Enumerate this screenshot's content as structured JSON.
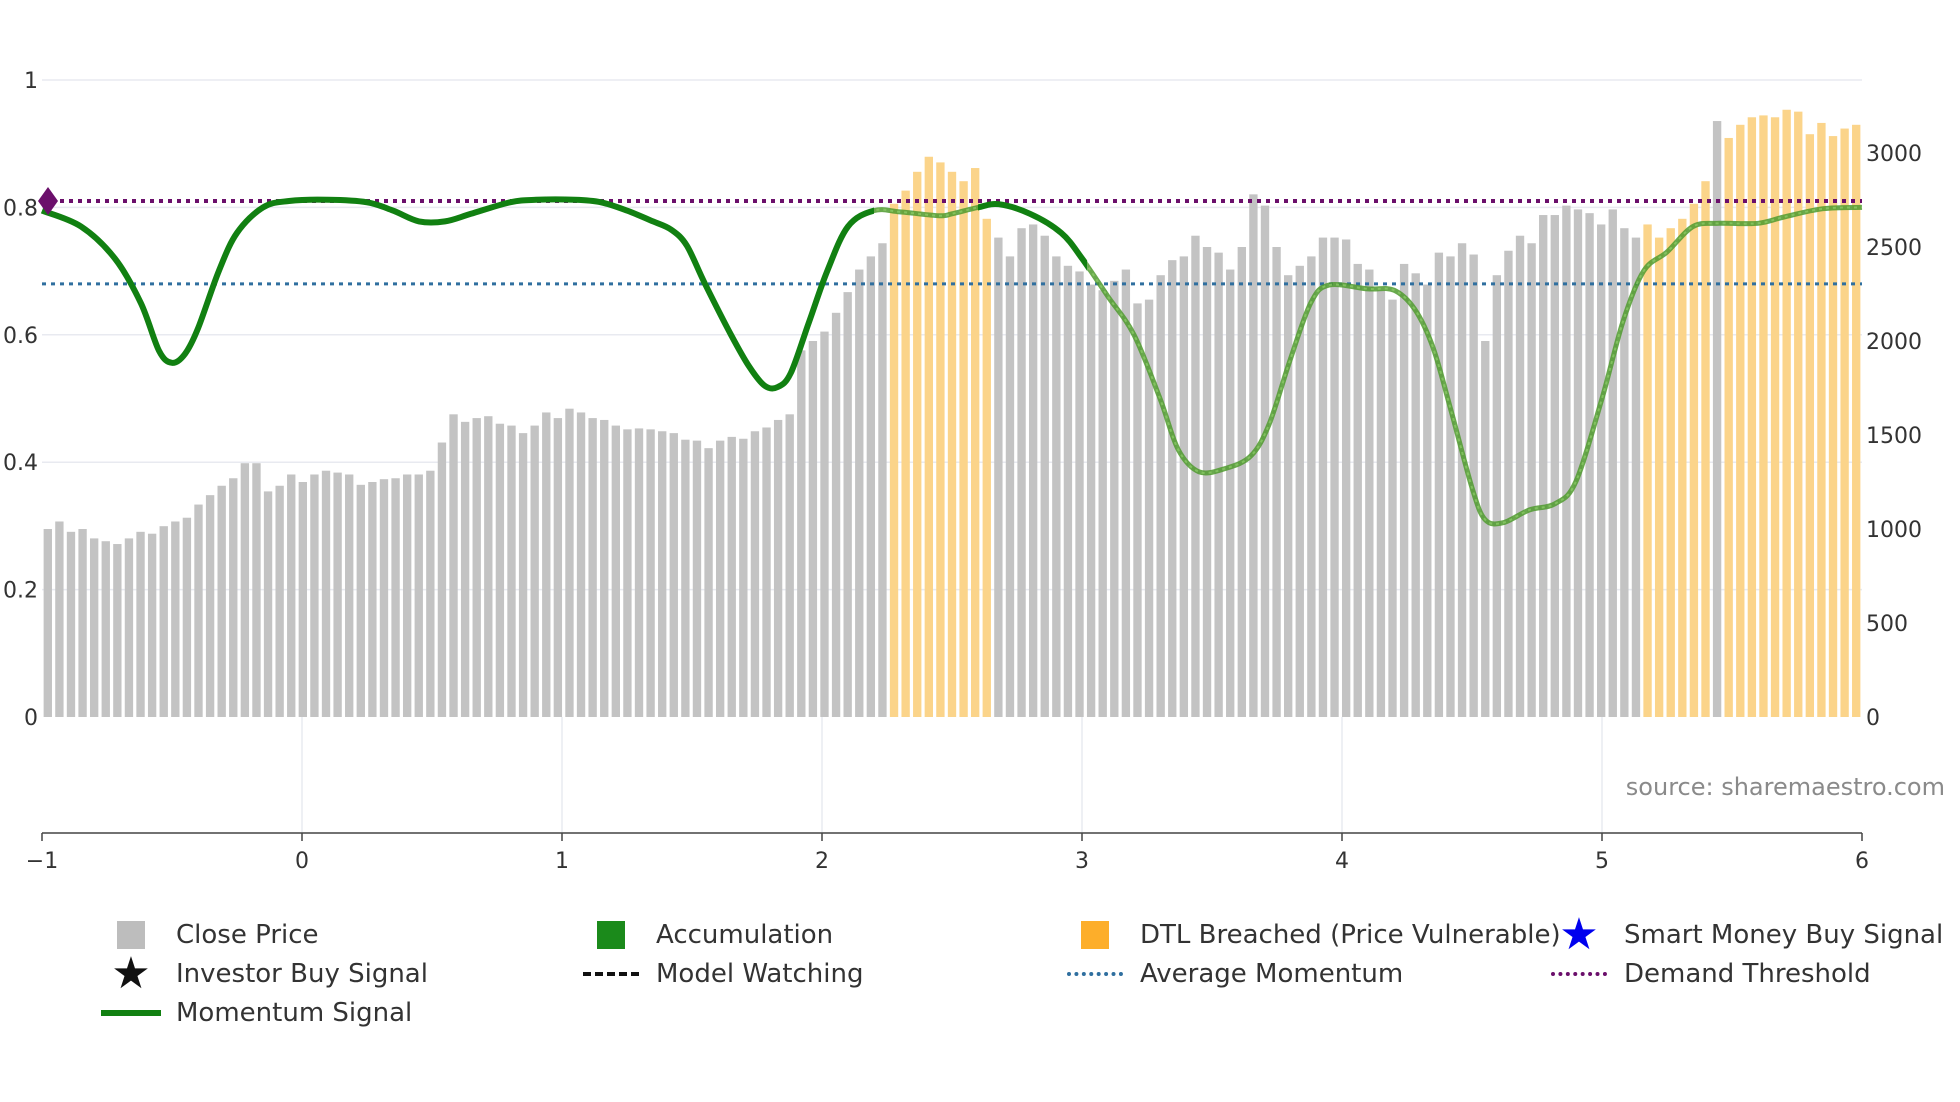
{
  "chart_data": {
    "type": "bar",
    "source_label": "source: sharemaestro.com",
    "x_axis": {
      "range": [
        -1,
        6
      ],
      "ticks": [
        "−1",
        "0",
        "1",
        "2",
        "3",
        "4",
        "5",
        "6"
      ]
    },
    "y_left": {
      "range": [
        0,
        1
      ],
      "ticks": [
        {
          "value": 0,
          "label": "0"
        },
        {
          "value": 0.2,
          "label": "0.2"
        },
        {
          "value": 0.4,
          "label": "0.4"
        },
        {
          "value": 0.6,
          "label": "0.6"
        },
        {
          "value": 0.8,
          "label": "0.8"
        },
        {
          "value": 1,
          "label": "1"
        }
      ]
    },
    "y_right": {
      "range": [
        0,
        3380
      ],
      "ticks": [
        {
          "value": 0,
          "label": "0"
        },
        {
          "value": 500,
          "label": "500"
        },
        {
          "value": 1000,
          "label": "1000"
        },
        {
          "value": 1500,
          "label": "1500"
        },
        {
          "value": 2000,
          "label": "2000"
        },
        {
          "value": 2500,
          "label": "2500"
        },
        {
          "value": 3000,
          "label": "3000"
        }
      ]
    },
    "close_price": [
      1000,
      1040,
      985,
      1000,
      950,
      935,
      920,
      950,
      985,
      975,
      1015,
      1040,
      1060,
      1130,
      1180,
      1230,
      1270,
      1350,
      1350,
      1200,
      1230,
      1290,
      1250,
      1290,
      1310,
      1300,
      1290,
      1235,
      1250,
      1265,
      1270,
      1290,
      1290,
      1310,
      1460,
      1610,
      1570,
      1590,
      1600,
      1560,
      1550,
      1510,
      1550,
      1620,
      1590,
      1640,
      1620,
      1590,
      1580,
      1550,
      1530,
      1535,
      1530,
      1520,
      1510,
      1475,
      1470,
      1430,
      1470,
      1490,
      1480,
      1520,
      1540,
      1580,
      1610,
      1950,
      2000,
      2050,
      2150,
      2260,
      2380,
      2450,
      2520,
      2730,
      2800,
      2900,
      2980,
      2950,
      2900,
      2850,
      2920,
      2650,
      2550,
      2450,
      2600,
      2620,
      2560,
      2450,
      2400,
      2370,
      2300,
      2270,
      2320,
      2380,
      2200,
      2220,
      2350,
      2430,
      2450,
      2560,
      2500,
      2470,
      2380,
      2500,
      2780,
      2720,
      2500,
      2350,
      2400,
      2450,
      2550,
      2550,
      2540,
      2410,
      2380,
      2270,
      2220,
      2410,
      2360,
      2300,
      2470,
      2450,
      2520,
      2460,
      2000,
      2350,
      2480,
      2560,
      2520,
      2670,
      2670,
      2720,
      2700,
      2680,
      2620,
      2700,
      2600,
      2550,
      2620,
      2550,
      2600,
      2650,
      2730,
      2850,
      3170,
      3080,
      3150,
      3190,
      3200,
      3190,
      3230,
      3220,
      3100,
      3160,
      3090,
      3130,
      3150
    ],
    "dtl_breached_segments": [
      [
        73,
        81
      ],
      [
        138,
        143
      ],
      [
        145,
        160
      ]
    ],
    "momentum_signal": [
      [
        -1.0,
        0.795
      ],
      [
        -0.85,
        0.77
      ],
      [
        -0.72,
        0.72
      ],
      [
        -0.62,
        0.65
      ],
      [
        -0.55,
        0.575
      ],
      [
        -0.5,
        0.556
      ],
      [
        -0.45,
        0.57
      ],
      [
        -0.4,
        0.61
      ],
      [
        -0.32,
        0.7
      ],
      [
        -0.25,
        0.76
      ],
      [
        -0.15,
        0.8
      ],
      [
        -0.05,
        0.81
      ],
      [
        0.1,
        0.812
      ],
      [
        0.25,
        0.808
      ],
      [
        0.35,
        0.795
      ],
      [
        0.45,
        0.778
      ],
      [
        0.55,
        0.778
      ],
      [
        0.65,
        0.79
      ],
      [
        0.8,
        0.808
      ],
      [
        0.9,
        0.812
      ],
      [
        1.05,
        0.812
      ],
      [
        1.15,
        0.808
      ],
      [
        1.25,
        0.795
      ],
      [
        1.35,
        0.778
      ],
      [
        1.42,
        0.765
      ],
      [
        1.48,
        0.74
      ],
      [
        1.55,
        0.68
      ],
      [
        1.65,
        0.6
      ],
      [
        1.72,
        0.55
      ],
      [
        1.78,
        0.52
      ],
      [
        1.83,
        0.518
      ],
      [
        1.88,
        0.54
      ],
      [
        1.95,
        0.62
      ],
      [
        2.02,
        0.7
      ],
      [
        2.1,
        0.77
      ],
      [
        2.2,
        0.795
      ],
      [
        2.3,
        0.793
      ],
      [
        2.45,
        0.787
      ],
      [
        2.5,
        0.79
      ],
      [
        2.6,
        0.8
      ],
      [
        2.68,
        0.805
      ],
      [
        2.8,
        0.79
      ],
      [
        2.92,
        0.76
      ],
      [
        3.0,
        0.72
      ],
      [
        3.1,
        0.66
      ],
      [
        3.2,
        0.6
      ],
      [
        3.3,
        0.5
      ],
      [
        3.37,
        0.42
      ],
      [
        3.45,
        0.385
      ],
      [
        3.55,
        0.39
      ],
      [
        3.65,
        0.41
      ],
      [
        3.72,
        0.46
      ],
      [
        3.8,
        0.56
      ],
      [
        3.88,
        0.65
      ],
      [
        3.95,
        0.678
      ],
      [
        4.1,
        0.672
      ],
      [
        4.2,
        0.67
      ],
      [
        4.28,
        0.64
      ],
      [
        4.35,
        0.58
      ],
      [
        4.42,
        0.48
      ],
      [
        4.5,
        0.36
      ],
      [
        4.55,
        0.31
      ],
      [
        4.62,
        0.305
      ],
      [
        4.72,
        0.325
      ],
      [
        4.82,
        0.335
      ],
      [
        4.9,
        0.37
      ],
      [
        5.0,
        0.5
      ],
      [
        5.08,
        0.62
      ],
      [
        5.16,
        0.7
      ],
      [
        5.25,
        0.73
      ],
      [
        5.35,
        0.77
      ],
      [
        5.45,
        0.775
      ],
      [
        5.6,
        0.775
      ],
      [
        5.7,
        0.785
      ],
      [
        5.85,
        0.798
      ],
      [
        6.0,
        0.8
      ]
    ],
    "momentum_watching_range": [
      2.2,
      2.6
    ],
    "average_momentum": 0.68,
    "demand_threshold": 0.81,
    "legend": [
      {
        "symbol": "square-grey",
        "label": "Close Price"
      },
      {
        "symbol": "square-green",
        "label": "Accumulation"
      },
      {
        "symbol": "square-orange",
        "label": "DTL Breached (Price Vulnerable)"
      },
      {
        "symbol": "star-blue",
        "label": "Smart Money Buy Signal"
      },
      {
        "symbol": "star-black",
        "label": "Investor Buy Signal"
      },
      {
        "symbol": "dash-black",
        "label": "Model Watching"
      },
      {
        "symbol": "dot-blue",
        "label": "Average Momentum"
      },
      {
        "symbol": "dot-purple",
        "label": "Demand Threshold"
      },
      {
        "symbol": "line-green",
        "label": "Momentum Signal"
      }
    ],
    "colors": {
      "close_price": "#c3c3c3",
      "dtl_breached": "#fbd48a",
      "momentum": "#118011",
      "momentum_faded": "#4f9a2e",
      "average_momentum": "#2f6f9f",
      "demand_threshold": "#6b0f6b",
      "accumulation": "#1b8a1b",
      "dtl_legend": "#fdae2a",
      "smart_money": "#0000ee",
      "investor": "#111111"
    }
  }
}
